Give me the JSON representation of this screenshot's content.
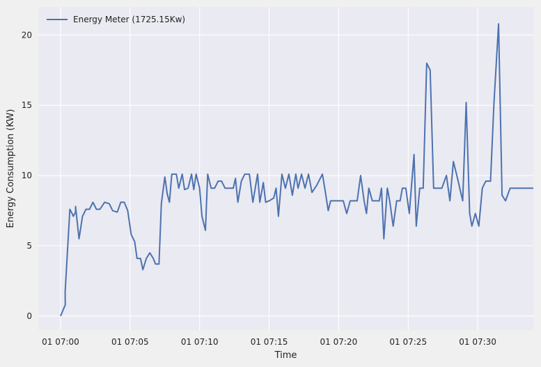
{
  "chart_data": {
    "type": "line",
    "xlabel": "Time",
    "ylabel": "Energy Consumption (KW)",
    "x_unit": "minutes after 01 07:00",
    "xlim": [
      -1.6,
      34.0
    ],
    "ylim": [
      -1.0,
      22.0
    ],
    "xticks": [
      {
        "value": 0,
        "label": "01 07:00"
      },
      {
        "value": 5,
        "label": "01 07:05"
      },
      {
        "value": 10,
        "label": "01 07:10"
      },
      {
        "value": 15,
        "label": "01 07:15"
      },
      {
        "value": 20,
        "label": "01 07:20"
      },
      {
        "value": 25,
        "label": "01 07:25"
      },
      {
        "value": 30,
        "label": "01 07:30"
      }
    ],
    "yticks": [
      {
        "value": 0,
        "label": "0"
      },
      {
        "value": 5,
        "label": "5"
      },
      {
        "value": 10,
        "label": "10"
      },
      {
        "value": 15,
        "label": "15"
      },
      {
        "value": 20,
        "label": "20"
      }
    ],
    "grid": true,
    "legend_position": "top-left",
    "colors": {
      "line": "#4c72b0",
      "plot_bg": "#eaeaf2",
      "grid": "#ffffff",
      "figure_bg": "#f0f0f0"
    },
    "series": [
      {
        "name": "Energy Meter (1725.15Kw)",
        "points": [
          [
            0.0,
            0.0
          ],
          [
            0.34,
            0.8
          ],
          [
            0.33,
            1.7
          ],
          [
            0.67,
            7.6
          ],
          [
            0.83,
            7.3
          ],
          [
            0.92,
            7.1
          ],
          [
            1.08,
            7.4
          ],
          [
            1.08,
            7.8
          ],
          [
            1.33,
            5.5
          ],
          [
            1.58,
            7.1
          ],
          [
            1.83,
            7.6
          ],
          [
            2.08,
            7.6
          ],
          [
            2.33,
            8.1
          ],
          [
            2.58,
            7.6
          ],
          [
            2.83,
            7.6
          ],
          [
            3.17,
            8.1
          ],
          [
            3.5,
            8.0
          ],
          [
            3.75,
            7.5
          ],
          [
            4.08,
            7.4
          ],
          [
            4.33,
            8.1
          ],
          [
            4.58,
            8.1
          ],
          [
            4.83,
            7.5
          ],
          [
            5.08,
            5.8
          ],
          [
            5.33,
            5.3
          ],
          [
            5.5,
            4.1
          ],
          [
            5.75,
            4.1
          ],
          [
            5.92,
            3.3
          ],
          [
            6.17,
            4.1
          ],
          [
            6.42,
            4.5
          ],
          [
            6.67,
            4.1
          ],
          [
            6.83,
            3.7
          ],
          [
            7.08,
            3.7
          ],
          [
            7.25,
            8.0
          ],
          [
            7.5,
            9.9
          ],
          [
            7.67,
            8.7
          ],
          [
            7.83,
            8.1
          ],
          [
            8.0,
            10.1
          ],
          [
            8.33,
            10.1
          ],
          [
            8.5,
            9.1
          ],
          [
            8.75,
            10.1
          ],
          [
            8.92,
            9.0
          ],
          [
            9.17,
            9.1
          ],
          [
            9.42,
            10.1
          ],
          [
            9.58,
            9.0
          ],
          [
            9.75,
            10.1
          ],
          [
            10.0,
            9.1
          ],
          [
            10.17,
            7.1
          ],
          [
            10.42,
            6.1
          ],
          [
            10.58,
            10.1
          ],
          [
            10.83,
            9.1
          ],
          [
            11.08,
            9.1
          ],
          [
            11.33,
            9.6
          ],
          [
            11.58,
            9.6
          ],
          [
            11.83,
            9.1
          ],
          [
            12.08,
            9.1
          ],
          [
            12.42,
            9.1
          ],
          [
            12.58,
            9.8
          ],
          [
            12.75,
            8.1
          ],
          [
            13.0,
            9.6
          ],
          [
            13.25,
            10.1
          ],
          [
            13.58,
            10.1
          ],
          [
            13.83,
            8.1
          ],
          [
            14.17,
            10.1
          ],
          [
            14.33,
            8.1
          ],
          [
            14.58,
            9.5
          ],
          [
            14.75,
            8.1
          ],
          [
            15.0,
            8.2
          ],
          [
            15.33,
            8.4
          ],
          [
            15.5,
            9.1
          ],
          [
            15.67,
            7.1
          ],
          [
            15.92,
            10.1
          ],
          [
            16.17,
            9.1
          ],
          [
            16.42,
            10.1
          ],
          [
            16.67,
            8.6
          ],
          [
            16.92,
            10.1
          ],
          [
            17.08,
            9.1
          ],
          [
            17.33,
            10.1
          ],
          [
            17.58,
            9.1
          ],
          [
            17.83,
            10.1
          ],
          [
            18.08,
            8.8
          ],
          [
            18.42,
            9.3
          ],
          [
            18.83,
            10.1
          ],
          [
            19.0,
            9.1
          ],
          [
            19.25,
            7.5
          ],
          [
            19.42,
            8.2
          ],
          [
            19.67,
            8.2
          ],
          [
            20.0,
            8.2
          ],
          [
            20.33,
            8.2
          ],
          [
            20.58,
            7.3
          ],
          [
            20.83,
            8.2
          ],
          [
            21.08,
            8.2
          ],
          [
            21.33,
            8.2
          ],
          [
            21.58,
            10.0
          ],
          [
            21.83,
            8.2
          ],
          [
            22.0,
            7.3
          ],
          [
            22.17,
            9.1
          ],
          [
            22.42,
            8.2
          ],
          [
            22.67,
            8.2
          ],
          [
            22.92,
            8.2
          ],
          [
            23.08,
            9.1
          ],
          [
            23.25,
            5.5
          ],
          [
            23.5,
            9.1
          ],
          [
            23.67,
            8.2
          ],
          [
            23.92,
            6.4
          ],
          [
            24.17,
            8.2
          ],
          [
            24.42,
            8.2
          ],
          [
            24.58,
            9.1
          ],
          [
            24.83,
            9.1
          ],
          [
            25.08,
            7.3
          ],
          [
            25.42,
            11.5
          ],
          [
            25.58,
            6.4
          ],
          [
            25.83,
            9.1
          ],
          [
            26.08,
            9.1
          ],
          [
            26.33,
            18.0
          ],
          [
            26.58,
            17.5
          ],
          [
            26.83,
            9.1
          ],
          [
            27.08,
            9.1
          ],
          [
            27.42,
            9.1
          ],
          [
            27.75,
            10.0
          ],
          [
            28.0,
            8.2
          ],
          [
            28.25,
            11.0
          ],
          [
            28.5,
            10.0
          ],
          [
            28.92,
            8.2
          ],
          [
            29.17,
            15.2
          ],
          [
            29.42,
            7.3
          ],
          [
            29.58,
            6.4
          ],
          [
            29.83,
            7.3
          ],
          [
            30.08,
            6.4
          ],
          [
            30.33,
            9.1
          ],
          [
            30.58,
            9.6
          ],
          [
            30.92,
            9.6
          ],
          [
            31.17,
            15.2
          ],
          [
            31.5,
            20.8
          ],
          [
            31.75,
            8.6
          ],
          [
            32.0,
            8.2
          ],
          [
            32.33,
            9.1
          ],
          [
            32.67,
            9.1
          ],
          [
            33.0,
            9.1
          ],
          [
            33.5,
            9.1
          ],
          [
            34.0,
            9.1
          ]
        ]
      }
    ]
  }
}
